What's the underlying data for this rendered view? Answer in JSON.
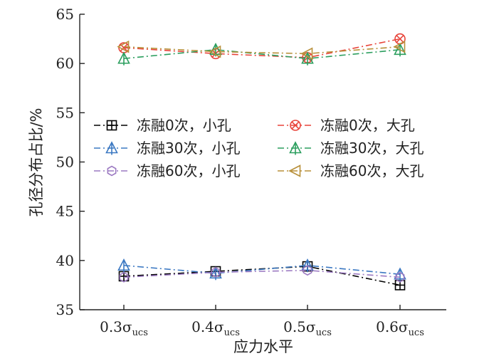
{
  "chart_data": {
    "type": "line",
    "xlabel": "应力水平",
    "ylabel": "孔径分布占比/%",
    "categories": [
      {
        "base": "0.3σ",
        "sub": "ucs"
      },
      {
        "base": "0.4σ",
        "sub": "ucs"
      },
      {
        "base": "0.5σ",
        "sub": "ucs"
      },
      {
        "base": "0.6σ",
        "sub": "ucs"
      }
    ],
    "ylim": [
      35,
      65
    ],
    "yticks": [
      "35",
      "40",
      "45",
      "50",
      "55",
      "60",
      "65"
    ],
    "grid": false,
    "legend_position": "center",
    "series": [
      {
        "name": "冻融0次，小孔",
        "color": "#000000",
        "marker": "boxplus",
        "values": [
          38.4,
          38.9,
          39.4,
          37.5
        ]
      },
      {
        "name": "冻融0次，大孔",
        "color": "#e8443a",
        "marker": "circlex",
        "values": [
          61.6,
          61.0,
          60.6,
          62.5
        ]
      },
      {
        "name": "冻融30次，小孔",
        "color": "#3b78c2",
        "marker": "triangle",
        "values": [
          39.5,
          38.7,
          39.5,
          38.6
        ]
      },
      {
        "name": "冻融30次，大孔",
        "color": "#2b9e5e",
        "marker": "triangle",
        "values": [
          60.5,
          61.4,
          60.5,
          61.4
        ]
      },
      {
        "name": "冻融60次，小孔",
        "color": "#9c7ac2",
        "marker": "hexagon",
        "values": [
          38.3,
          38.8,
          39.0,
          38.3
        ]
      },
      {
        "name": "冻融60次，大孔",
        "color": "#b8903a",
        "marker": "triangleleft",
        "values": [
          61.7,
          61.2,
          61.0,
          61.7
        ]
      }
    ]
  }
}
